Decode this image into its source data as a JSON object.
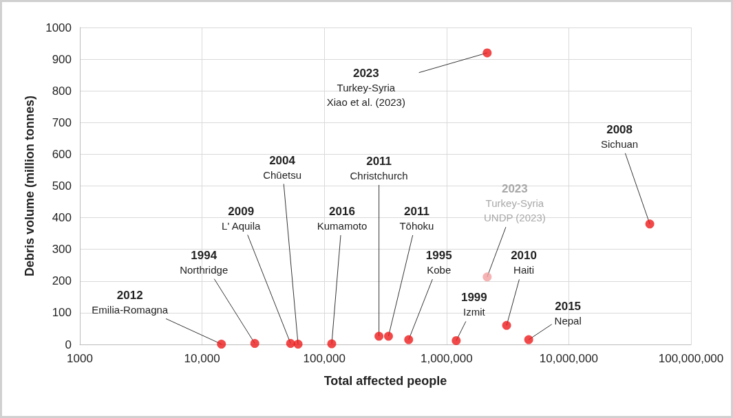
{
  "chart_data": {
    "type": "scatter",
    "xlabel": "Total affected people",
    "ylabel": "Debris volume (million tonnes)",
    "log": "x",
    "xlim": [
      1000,
      100000000
    ],
    "xticks": [
      1000,
      {
        "value": 10000,
        "label": "10,000"
      },
      {
        "value": 100000,
        "label": "100,000"
      },
      {
        "value": 1000000,
        "label": "1,000,000"
      },
      {
        "value": 10000000,
        "label": "10,000,000"
      },
      {
        "value": 100000000,
        "label": "100,000,000"
      }
    ],
    "ylim": [
      0,
      1000
    ],
    "yticks": [
      0,
      100,
      200,
      300,
      400,
      500,
      600,
      700,
      800,
      900,
      1000
    ],
    "grid": true,
    "marker": "circle",
    "x": [
      14400,
      27000,
      53000,
      61000,
      115000,
      280000,
      335000,
      490000,
      1200000,
      2150000,
      2150000,
      3100000,
      4700000,
      46000000
    ],
    "values": [
      1,
      3,
      3,
      1,
      2,
      26,
      26,
      15,
      12,
      920,
      213,
      60,
      15,
      380
    ],
    "colors": [
      "#ee1c1c",
      "#ee1c1c",
      "#ee1c1c",
      "#ee1c1c",
      "#ee1c1c",
      "#ee1c1c",
      "#ee1c1c",
      "#ee1c1c",
      "#ee1c1c",
      "#ee1c1c",
      "#f4a0a0",
      "#ee1c1c",
      "#ee1c1c",
      "#ee1c1c"
    ],
    "annotations": [
      {
        "text": "2012\nEmilia-Romagna",
        "x": 14400,
        "y": 1
      },
      {
        "text": "1994\nNorthridge",
        "x": 27000,
        "y": 3
      },
      {
        "text": "2009\nL' Aquila",
        "x": 53000,
        "y": 3
      },
      {
        "text": "2004\nChūetsu",
        "x": 61000,
        "y": 1
      },
      {
        "text": "2016\nKumamoto",
        "x": 115000,
        "y": 2
      },
      {
        "text": "2011\nChristchurch",
        "x": 280000,
        "y": 26
      },
      {
        "text": "2011\nTōhoku",
        "x": 335000,
        "y": 26
      },
      {
        "text": "1995\nKobe",
        "x": 490000,
        "y": 15
      },
      {
        "text": "1999\nIzmit",
        "x": 1200000,
        "y": 12
      },
      {
        "text": "2023\nTurkey-Syria\nXiao et al. (2023)",
        "x": 2150000,
        "y": 920
      },
      {
        "text": "2023\nTurkey-Syria\nUNDP (2023)",
        "x": 2150000,
        "y": 213
      },
      {
        "text": "2010\nHaiti",
        "x": 3100000,
        "y": 60
      },
      {
        "text": "2015\nNepal",
        "x": 4700000,
        "y": 15
      },
      {
        "text": "2008\nSichuan",
        "x": 46000000,
        "y": 380
      }
    ]
  }
}
